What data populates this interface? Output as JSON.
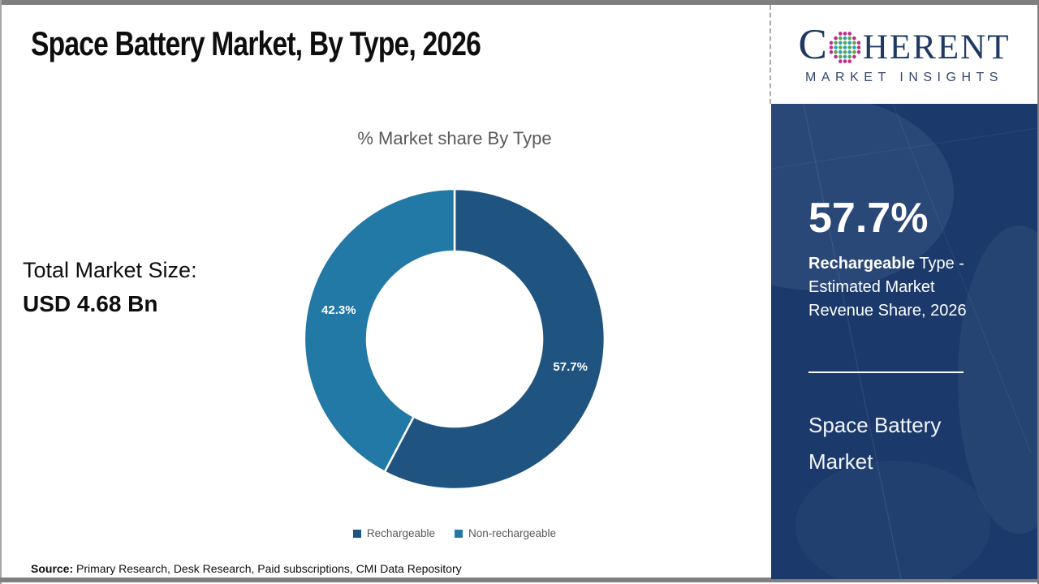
{
  "slide": {
    "title": "Space Battery Market, By Type, 2026",
    "total_market": {
      "label": "Total Market Size:",
      "value": "USD 4.68 Bn"
    },
    "source": {
      "label": "Source:",
      "text": " Primary Research, Desk Research, Paid subscriptions, CMI Data Repository"
    }
  },
  "chart_data": {
    "type": "pie",
    "subtype": "donut",
    "title": "% Market share By Type",
    "categories": [
      "Rechargeable",
      "Non-rechargeable"
    ],
    "values": [
      57.7,
      42.3
    ],
    "unit": "percent of market share",
    "labels": [
      "57.7%",
      "42.3%"
    ],
    "colors": [
      "#1F5480",
      "#2279A6"
    ],
    "legend_position": "bottom",
    "start_angle_deg": 0,
    "direction": "clockwise"
  },
  "sidebar": {
    "background_color": "#1B3A6B",
    "stat_value": "57.7%",
    "stat_desc_bold": "Rechargeable",
    "stat_desc_rest": " Type - Estimated Market Revenue Share, 2026",
    "market_name": "Space Battery Market"
  },
  "logo": {
    "brand_c": "C",
    "brand_rest": "HERENT",
    "subtitle": "MARKET INSIGHTS",
    "text_color": "#1F3864",
    "globe_colors": {
      "outer": "#C12A8C",
      "teal": "#2D9FB0",
      "green": "#58A843"
    }
  }
}
